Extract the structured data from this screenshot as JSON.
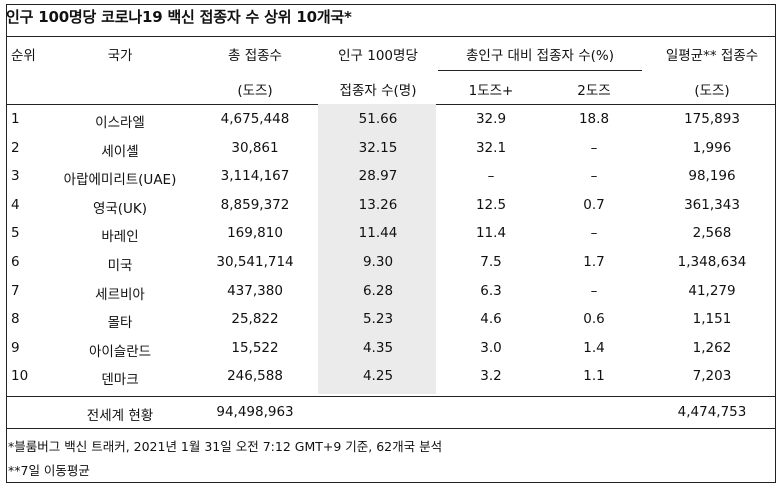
{
  "title": "인구 100명당 코로나19 백신 접종자 수 상위 10개국*",
  "headers": {
    "rank": "순위",
    "country": "국가",
    "total": "총 접종수",
    "total_unit": "(도즈)",
    "per100": "인구 100명당",
    "per100_unit": "접종자 수(명)",
    "share": "총인구 대비 접종자 수(%)",
    "dose1": "1도즈+",
    "dose2": "2도즈",
    "daily": "일평균** 접종수",
    "daily_unit": "(도즈)"
  },
  "rows": [
    {
      "rank": "1",
      "country": "이스라엘",
      "total": "4,675,448",
      "per100": "51.66",
      "dose1": "32.9",
      "dose2": "18.8",
      "daily": "175,893"
    },
    {
      "rank": "2",
      "country": "세이셸",
      "total": "30,861",
      "per100": "32.15",
      "dose1": "32.1",
      "dose2": "–",
      "daily": "1,996"
    },
    {
      "rank": "3",
      "country": "아랍에미리트(UAE)",
      "total": "3,114,167",
      "per100": "28.97",
      "dose1": "–",
      "dose2": "–",
      "daily": "98,196"
    },
    {
      "rank": "4",
      "country": "영국(UK)",
      "total": "8,859,372",
      "per100": "13.26",
      "dose1": "12.5",
      "dose2": "0.7",
      "daily": "361,343"
    },
    {
      "rank": "5",
      "country": "바레인",
      "total": "169,810",
      "per100": "11.44",
      "dose1": "11.4",
      "dose2": "–",
      "daily": "2,568"
    },
    {
      "rank": "6",
      "country": "미국",
      "total": "30,541,714",
      "per100": "9.30",
      "dose1": "7.5",
      "dose2": "1.7",
      "daily": "1,348,634"
    },
    {
      "rank": "7",
      "country": "세르비아",
      "total": "437,380",
      "per100": "6.28",
      "dose1": "6.3",
      "dose2": "–",
      "daily": "41,279"
    },
    {
      "rank": "8",
      "country": "몰타",
      "total": "25,822",
      "per100": "5.23",
      "dose1": "4.6",
      "dose2": "0.6",
      "daily": "1,151"
    },
    {
      "rank": "9",
      "country": "아이슬란드",
      "total": "15,522",
      "per100": "4.35",
      "dose1": "3.0",
      "dose2": "1.4",
      "daily": "1,262"
    },
    {
      "rank": "10",
      "country": "덴마크",
      "total": "246,588",
      "per100": "4.25",
      "dose1": "3.2",
      "dose2": "1.1",
      "daily": "7,203"
    }
  ],
  "world": {
    "label": "전세계 현황",
    "total": "94,498,963",
    "daily": "4,474,753"
  },
  "footnotes": [
    "*블룸버그 백신 트래커, 2021년 1월 31일 오전 7:12 GMT+9 기준, 62개국 분석",
    "**7일 이동평균"
  ]
}
